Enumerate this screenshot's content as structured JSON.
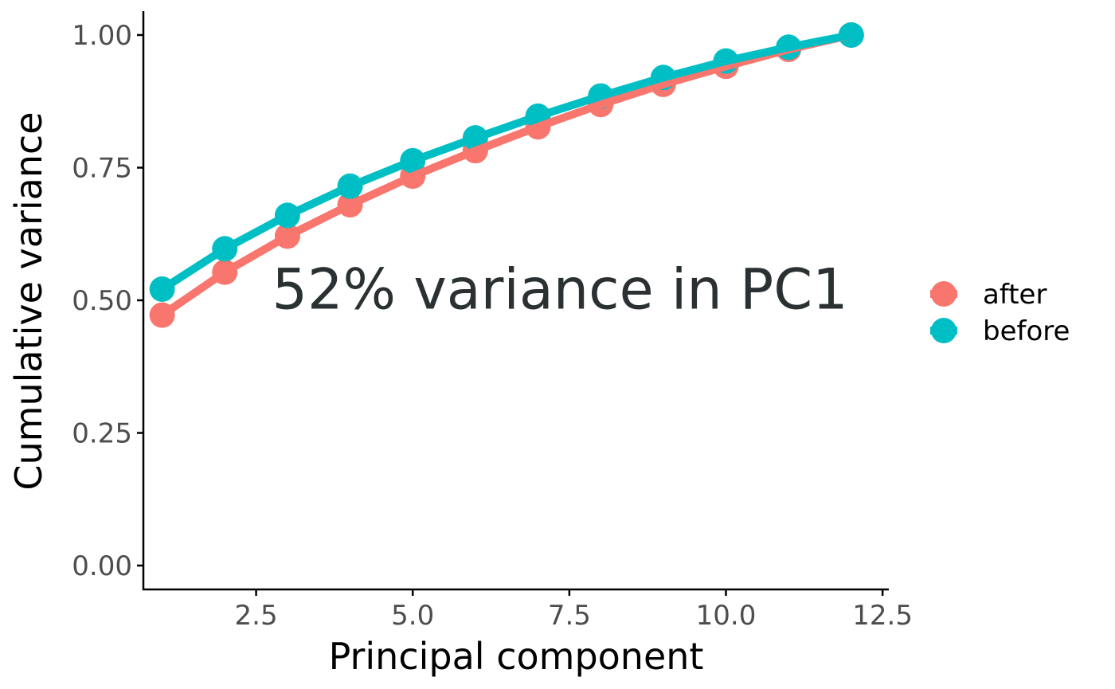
{
  "chart_data": {
    "type": "line",
    "title": "",
    "xlabel": "Principal component",
    "ylabel": "Cumulative variance",
    "xlim": [
      0.7,
      12.6
    ],
    "ylim": [
      -0.045,
      1.045
    ],
    "xticks": [
      2.5,
      5.0,
      7.5,
      10.0,
      12.5
    ],
    "xtick_labels": [
      "2.5",
      "5.0",
      "7.5",
      "10.0",
      "12.5"
    ],
    "yticks": [
      0.0,
      0.25,
      0.5,
      0.75,
      1.0
    ],
    "ytick_labels": [
      "0.00",
      "0.25",
      "0.50",
      "0.75",
      "1.00"
    ],
    "grid": false,
    "legend_position": "right",
    "annotation": {
      "text": "52% variance in PC1",
      "x": 7.35,
      "y": 0.52
    },
    "x": [
      1,
      2,
      3,
      4,
      5,
      6,
      7,
      8,
      9,
      10,
      11,
      12
    ],
    "series": [
      {
        "name": "after",
        "color": "#F8766D",
        "values": [
          0.472,
          0.553,
          0.621,
          0.68,
          0.734,
          0.782,
          0.827,
          0.869,
          0.907,
          0.941,
          0.973,
          1.0
        ]
      },
      {
        "name": "before",
        "color": "#00BFC4",
        "values": [
          0.521,
          0.597,
          0.66,
          0.715,
          0.763,
          0.806,
          0.847,
          0.885,
          0.92,
          0.951,
          0.977,
          1.0
        ]
      }
    ]
  }
}
